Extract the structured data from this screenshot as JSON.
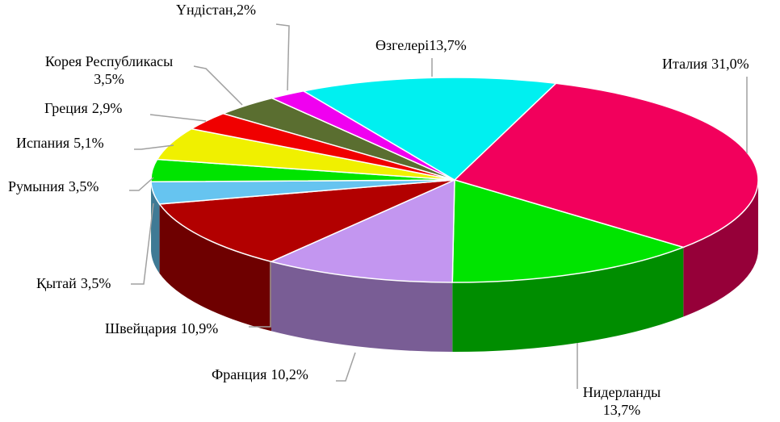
{
  "chart_data": {
    "type": "pie3d",
    "categories": [
      "Италия",
      "Нидерланды",
      "Франция",
      "Швейцария",
      "Қытай",
      "Румыния",
      "Испания",
      "Греция",
      "Корея Республикасы",
      "Үндістан,",
      "Өзгелері"
    ],
    "values": [
      31.0,
      13.7,
      10.2,
      10.9,
      3.5,
      3.5,
      5.1,
      2.9,
      3.5,
      2,
      13.7
    ],
    "value_labels": [
      "31,0%",
      "13,7%",
      "10,2%",
      "10,9%",
      "3,5%",
      "3,5%",
      "5,1%",
      "2,9%",
      "3,5%",
      "2%",
      "13,7%"
    ],
    "colors": [
      "#f2005c",
      "#00e400",
      "#c396f0",
      "#b20000",
      "#66c4f0",
      "#00e400",
      "#f0f000",
      "#f00000",
      "#5a6e30",
      "#f000f0",
      "#00f0f0"
    ]
  }
}
